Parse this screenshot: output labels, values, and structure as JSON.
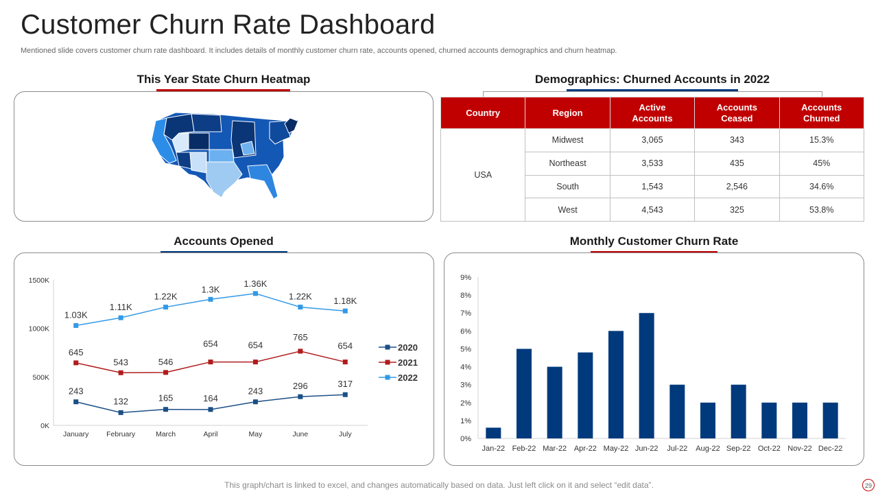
{
  "header": {
    "title": "Customer Churn Rate Dashboard",
    "subtitle": "Mentioned slide covers customer churn rate dashboard. It includes details of monthly customer churn rate, accounts opened, churned accounts demographics and churn heatmap."
  },
  "sections": {
    "heatmap_title": "This Year State Churn Heatmap",
    "demographics_title": "Demographics: Churned Accounts in 2022",
    "accounts_title": "Accounts Opened",
    "churn_title": "Monthly Customer Churn Rate"
  },
  "colors": {
    "red": "#c00000",
    "navy": "#003a7c",
    "blue": "#2e8ee0",
    "line2020": "#1b4f86",
    "line2021": "#b01c1c",
    "line2022": "#3399e6"
  },
  "demographics": {
    "headers": [
      "Country",
      "Region",
      "Active Accounts",
      "Accounts Ceased",
      "Accounts Churned"
    ],
    "country": "USA",
    "rows": [
      {
        "region": "Midwest",
        "active": "3,065",
        "ceased": "343",
        "churned": "15.3%"
      },
      {
        "region": "Northeast",
        "active": "3,533",
        "ceased": "435",
        "churned": "45%"
      },
      {
        "region": "South",
        "active": "1,543",
        "ceased": "2,546",
        "churned": "34.6%"
      },
      {
        "region": "West",
        "active": "4,543",
        "ceased": "325",
        "churned": "53.8%"
      }
    ]
  },
  "chart_data": [
    {
      "type": "line",
      "title": "Accounts Opened",
      "categories": [
        "January",
        "February",
        "March",
        "April",
        "May",
        "June",
        "July"
      ],
      "y_tick_labels": [
        "0K",
        "500K",
        "1000K",
        "1500K"
      ],
      "ylim": [
        0,
        1500
      ],
      "series": [
        {
          "name": "2020",
          "values": [
            243,
            132,
            165,
            164,
            243,
            296,
            317
          ],
          "labels": [
            "243",
            "132",
            "165",
            "164",
            "243",
            "296",
            "317"
          ]
        },
        {
          "name": "2021",
          "values": [
            645,
            543,
            546,
            654,
            654,
            765,
            654
          ],
          "labels": [
            "645",
            "543",
            "546",
            "654",
            "654",
            "765",
            "654"
          ]
        },
        {
          "name": "2022",
          "values": [
            1030,
            1110,
            1220,
            1300,
            1360,
            1220,
            1180
          ],
          "labels": [
            "1.03K",
            "1.11K",
            "1.22K",
            "1.3K",
            "1.36K",
            "1.22K",
            "1.18K"
          ]
        }
      ],
      "legend": "right"
    },
    {
      "type": "bar",
      "title": "Monthly Customer Churn Rate",
      "categories": [
        "Jan-22",
        "Feb-22",
        "Mar-22",
        "Apr-22",
        "May-22",
        "Jun-22",
        "Jul-22",
        "Aug-22",
        "Sep-22",
        "Oct-22",
        "Nov-22",
        "Dec-22"
      ],
      "values": [
        0.6,
        5,
        4,
        4.8,
        6,
        7,
        3,
        2,
        3,
        2,
        2,
        2
      ],
      "y_tick_labels": [
        "0%",
        "1%",
        "2%",
        "3%",
        "4%",
        "5%",
        "6%",
        "7%",
        "8%",
        "9%"
      ],
      "ylim": [
        0,
        9
      ]
    }
  ],
  "map": {
    "regions": [
      {
        "name": "West",
        "color": "#1c67c9"
      },
      {
        "name": "Northwest",
        "color": "#0d3d85"
      },
      {
        "name": "Mountain",
        "color": "#1a5db8"
      },
      {
        "name": "Midwest",
        "color": "#0a3576"
      },
      {
        "name": "South",
        "color": "#9fcaf2"
      },
      {
        "name": "Southeast",
        "color": "#2f86e0"
      },
      {
        "name": "Northeast",
        "color": "#0f4a9c"
      }
    ]
  },
  "footer": {
    "note": "This graph/chart is linked to excel,  and changes automatically based on data. Just left click on it and select “edit data”.",
    "page": "29"
  }
}
